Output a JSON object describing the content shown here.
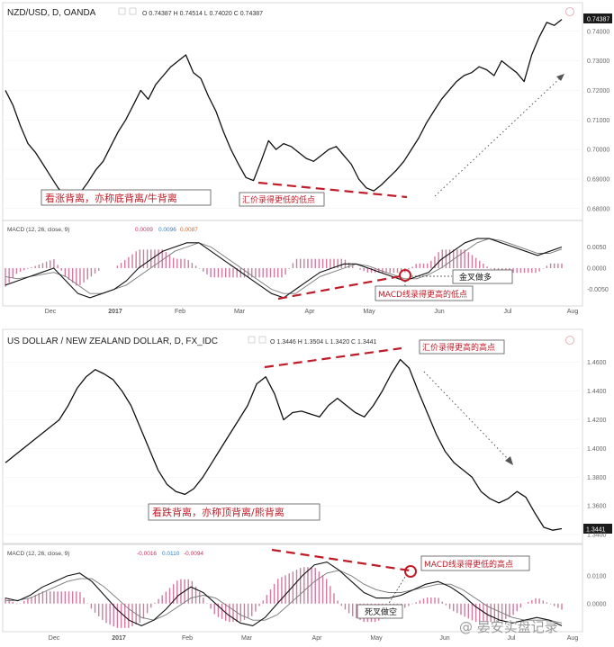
{
  "chart_data": [
    {
      "type": "line",
      "title": "NZD/USD, D, OANDA",
      "ohlc": "O 0.74387 H 0.74514 L 0.74020 C 0.74387",
      "last_price": "0.74387",
      "y_ticks": [
        "0.74000",
        "0.73000",
        "0.72000",
        "0.71000",
        "0.70000",
        "0.69000",
        "0.68000"
      ],
      "ylim": [
        0.6775,
        0.7445
      ],
      "x_ticks": [
        "Dec",
        "2017",
        "Feb",
        "Mar",
        "Apr",
        "May",
        "Jun",
        "Jul",
        "Aug"
      ],
      "series": [
        {
          "values": [
            0.72,
            0.715,
            0.708,
            0.702,
            0.699,
            0.695,
            0.691,
            0.687,
            0.684,
            0.6825,
            0.6855,
            0.689,
            0.693,
            0.696,
            0.701,
            0.706,
            0.71,
            0.715,
            0.72,
            0.717,
            0.722,
            0.725,
            0.728,
            0.73,
            0.732,
            0.726,
            0.724,
            0.718,
            0.713,
            0.706,
            0.7,
            0.695,
            0.6905,
            0.6895,
            0.696,
            0.703,
            0.7,
            0.702,
            0.701,
            0.699,
            0.697,
            0.696,
            0.698,
            0.7,
            0.701,
            0.698,
            0.695,
            0.69,
            0.687,
            0.686,
            0.688,
            0.6905,
            0.693,
            0.696,
            0.7,
            0.704,
            0.709,
            0.713,
            0.717,
            0.72,
            0.723,
            0.725,
            0.726,
            0.728,
            0.727,
            0.725,
            0.73,
            0.728,
            0.726,
            0.723,
            0.732,
            0.738,
            0.743,
            0.742,
            0.744
          ]
        }
      ],
      "trend_lines": [
        "price lower low (dashed red)",
        "MACD higher low (dashed red)",
        "dotted uptrend arrow"
      ],
      "macd": {
        "label": "MACD (12, 26, close, 9)",
        "values": [
          "0.0009",
          "0.0096",
          "0.0087"
        ],
        "y_ticks": [
          "0.0050",
          "0.0000",
          "-0.0050"
        ],
        "ylim": [
          -0.0085,
          0.0085
        ],
        "macd_line": [
          -0.004,
          -0.003,
          -0.002,
          -0.001,
          0.0,
          -0.003,
          -0.006,
          -0.007,
          -0.006,
          -0.005,
          -0.003,
          0.0,
          0.002,
          0.004,
          0.005,
          0.006,
          0.006,
          0.004,
          0.002,
          0.0,
          -0.002,
          -0.004,
          -0.006,
          -0.007,
          -0.005,
          -0.003,
          -0.001,
          0.0,
          0.001,
          0.001,
          0.0,
          -0.001,
          -0.002,
          -0.003,
          -0.002,
          -0.001,
          0.002,
          0.004,
          0.006,
          0.007,
          0.007,
          0.006,
          0.005,
          0.004,
          0.003,
          0.004,
          0.005
        ],
        "signal_line": [
          -0.002,
          -0.0025,
          -0.002,
          -0.0015,
          -0.001,
          -0.002,
          -0.004,
          -0.006,
          -0.006,
          -0.005,
          -0.004,
          -0.002,
          0.0,
          0.002,
          0.004,
          0.005,
          0.006,
          0.005,
          0.003,
          0.001,
          -0.001,
          -0.003,
          -0.005,
          -0.006,
          -0.006,
          -0.004,
          -0.002,
          -0.001,
          0.0,
          0.001,
          0.0005,
          -0.0005,
          -0.0015,
          -0.0025,
          -0.0025,
          -0.0015,
          0.0,
          0.002,
          0.004,
          0.006,
          0.007,
          0.0065,
          0.0055,
          0.0045,
          0.0035,
          0.0035,
          0.0045
        ]
      },
      "annotations": {
        "divergence_label": "看涨背离，亦称底背离/牛背离",
        "price_note": "汇价录得更低的低点",
        "macd_note": "MACD线录得更高的低点",
        "cross_note": "金叉做多"
      }
    },
    {
      "type": "line",
      "title": "US DOLLAR / NEW ZEALAND DOLLAR, D, FX_IDC",
      "ohlc": "O 1.3446 H 1.3504 L 1.3420 C 1.3441",
      "last_price": "1.3441",
      "y_ticks": [
        "1.4600",
        "1.4400",
        "1.4200",
        "1.4000",
        "1.3800",
        "1.3600",
        "1.3400"
      ],
      "ylim": [
        1.3375,
        1.4705
      ],
      "x_ticks": [
        "Dec",
        "2017",
        "Feb",
        "Mar",
        "Apr",
        "May",
        "Jun",
        "Jul",
        "Aug"
      ],
      "series": [
        {
          "values": [
            1.39,
            1.395,
            1.4,
            1.405,
            1.41,
            1.415,
            1.42,
            1.43,
            1.442,
            1.45,
            1.455,
            1.452,
            1.448,
            1.44,
            1.43,
            1.415,
            1.4,
            1.385,
            1.375,
            1.37,
            1.368,
            1.372,
            1.38,
            1.39,
            1.4,
            1.41,
            1.42,
            1.43,
            1.445,
            1.45,
            1.438,
            1.42,
            1.425,
            1.426,
            1.424,
            1.422,
            1.43,
            1.435,
            1.43,
            1.425,
            1.422,
            1.43,
            1.44,
            1.452,
            1.462,
            1.456,
            1.44,
            1.425,
            1.41,
            1.398,
            1.39,
            1.385,
            1.38,
            1.37,
            1.365,
            1.362,
            1.365,
            1.37,
            1.366,
            1.355,
            1.345,
            1.343,
            1.3441
          ]
        }
      ],
      "trend_lines": [
        "price higher high (dashed red)",
        "MACD lower high (dashed red)",
        "dotted downtrend arrow"
      ],
      "macd": {
        "label": "MACD (12, 26, close, 9)",
        "values": [
          "-0.0016",
          "0.0110",
          "-0.0094"
        ],
        "y_ticks": [
          "0.0100",
          "0.0000"
        ],
        "ylim": [
          -0.0095,
          0.0165
        ],
        "macd_line": [
          0.002,
          0.001,
          0.003,
          0.006,
          0.008,
          0.01,
          0.011,
          0.008,
          0.003,
          -0.002,
          -0.006,
          -0.008,
          -0.006,
          -0.002,
          0.003,
          0.006,
          0.004,
          0.0,
          -0.004,
          -0.007,
          -0.008,
          -0.005,
          0.0,
          0.005,
          0.01,
          0.014,
          0.015,
          0.012,
          0.008,
          0.004,
          0.002,
          0.002,
          0.003,
          0.005,
          0.007,
          0.008,
          0.006,
          0.003,
          -0.001,
          -0.004,
          -0.006,
          -0.007,
          -0.006,
          -0.005,
          -0.006,
          -0.008
        ],
        "signal_line": [
          0.001,
          0.0012,
          0.002,
          0.004,
          0.006,
          0.008,
          0.009,
          0.009,
          0.006,
          0.002,
          -0.002,
          -0.005,
          -0.006,
          -0.004,
          -0.001,
          0.002,
          0.003,
          0.002,
          -0.001,
          -0.004,
          -0.006,
          -0.006,
          -0.004,
          0.0,
          0.004,
          0.008,
          0.011,
          0.012,
          0.01,
          0.007,
          0.005,
          0.004,
          0.004,
          0.005,
          0.006,
          0.007,
          0.007,
          0.005,
          0.002,
          -0.001,
          -0.003,
          -0.005,
          -0.006,
          -0.006,
          -0.006,
          -0.007
        ]
      },
      "annotations": {
        "divergence_label": "看跌背离，亦称顶背离/熊背离",
        "price_note": "汇价录得更高的高点",
        "macd_note": "MACD线录得更低的高点",
        "cross_note": "死叉做空"
      }
    }
  ],
  "watermark": "@ 晏安实盘记录",
  "colors": {
    "line": "#111111",
    "hist": "#d07aa0",
    "annotation": "#c01c28",
    "grid": "#ececec"
  }
}
